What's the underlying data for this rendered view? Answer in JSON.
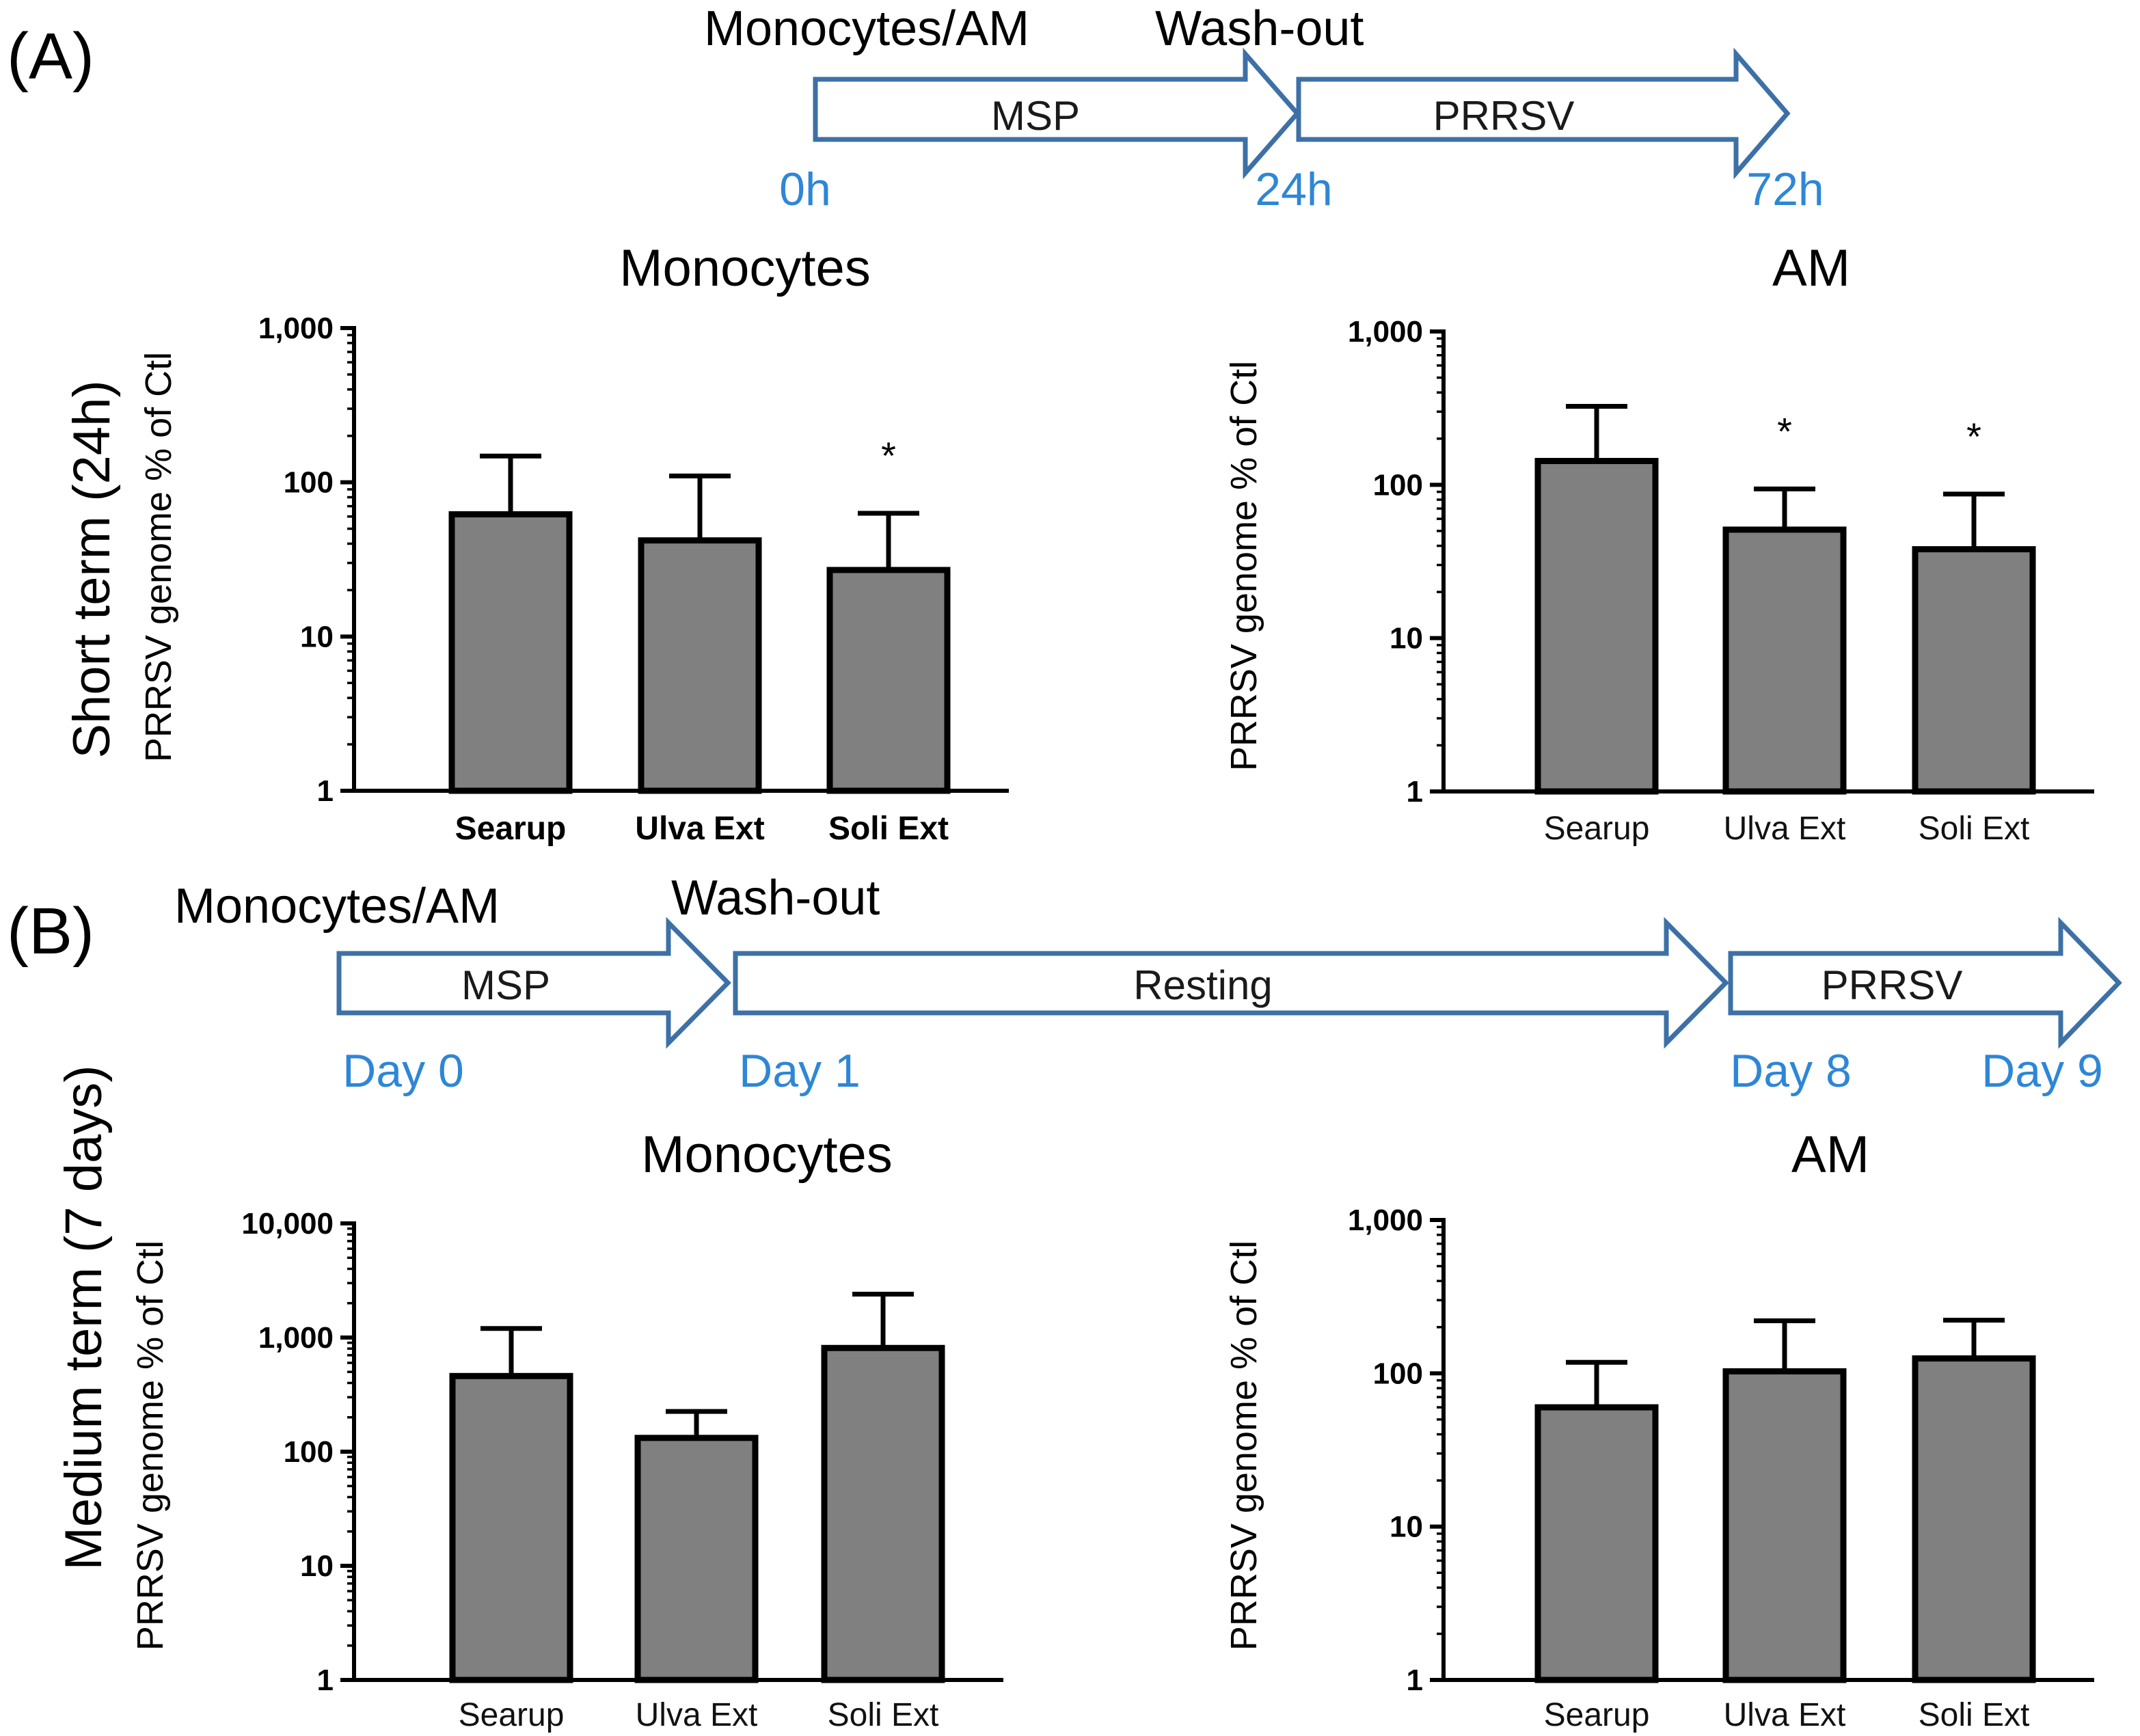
{
  "panelA": {
    "letter": "(A)",
    "timeline": {
      "label_cells": "Monocytes/AM",
      "label_washout": "Wash-out",
      "arrows": [
        "MSP",
        "PRRSV"
      ],
      "times": [
        "0h",
        "24h",
        "72h"
      ]
    },
    "row_label": "Short term (24h)"
  },
  "panelB": {
    "letter": "(B)",
    "timeline": {
      "label_cells": "Monocytes/AM",
      "label_washout": "Wash-out",
      "arrows": [
        "MSP",
        "Resting",
        "PRRSV"
      ],
      "times": [
        "Day 0",
        "Day 1",
        "Day 8",
        "Day 9"
      ]
    },
    "row_label": "Medium term (7 days)"
  },
  "colors": {
    "bar_fill": "#808080",
    "arrow_stroke": "#3d70a6",
    "time_text": "#2e86d6"
  },
  "chart_data": [
    {
      "id": "a-mono",
      "type": "bar",
      "title": "Monocytes",
      "ylabel": "PRRSV genome % of Ctl",
      "yscale": "log",
      "ylim": [
        1,
        1000
      ],
      "yticks": [
        "1",
        "10",
        "100",
        "1,000"
      ],
      "categories": [
        "Searup",
        "Ulva Ext",
        "Soli Ext"
      ],
      "values": [
        62,
        42,
        27
      ],
      "error_upper": [
        148,
        110,
        63
      ],
      "significance": [
        "",
        "",
        "*"
      ],
      "bold_categories": true
    },
    {
      "id": "a-am",
      "type": "bar",
      "title": "AM",
      "ylabel": "PRRSV genome % of Ctl",
      "yscale": "log",
      "ylim": [
        1,
        1000
      ],
      "yticks": [
        "1",
        "10",
        "100",
        "1,000"
      ],
      "categories": [
        "Searup",
        "Ulva Ext",
        "Soli Ext"
      ],
      "values": [
        143,
        51,
        38
      ],
      "error_upper": [
        325,
        94,
        87
      ],
      "significance": [
        "",
        "*",
        "*"
      ],
      "bold_categories": false
    },
    {
      "id": "b-mono",
      "type": "bar",
      "title": "Monocytes",
      "ylabel": "PRRSV genome % of Ctl",
      "yscale": "log",
      "ylim": [
        1,
        10000
      ],
      "yticks": [
        "1",
        "10",
        "100",
        "1,000",
        "10,000"
      ],
      "categories": [
        "Searup",
        "Ulva Ext",
        "Soli Ext"
      ],
      "values": [
        460,
        132,
        810
      ],
      "error_upper": [
        1200,
        225,
        2400
      ],
      "significance": [
        "",
        "",
        ""
      ],
      "bold_categories": false
    },
    {
      "id": "b-am",
      "type": "bar",
      "title": "AM",
      "ylabel": "PRRSV genome % of Ctl",
      "yscale": "log",
      "ylim": [
        1,
        1000
      ],
      "yticks": [
        "1",
        "10",
        "100",
        "1,000"
      ],
      "categories": [
        "Searup",
        "Ulva Ext",
        "Soli Ext"
      ],
      "values": [
        60,
        103,
        125
      ],
      "error_upper": [
        118,
        220,
        222
      ],
      "significance": [
        "",
        "",
        ""
      ],
      "bold_categories": false
    }
  ]
}
